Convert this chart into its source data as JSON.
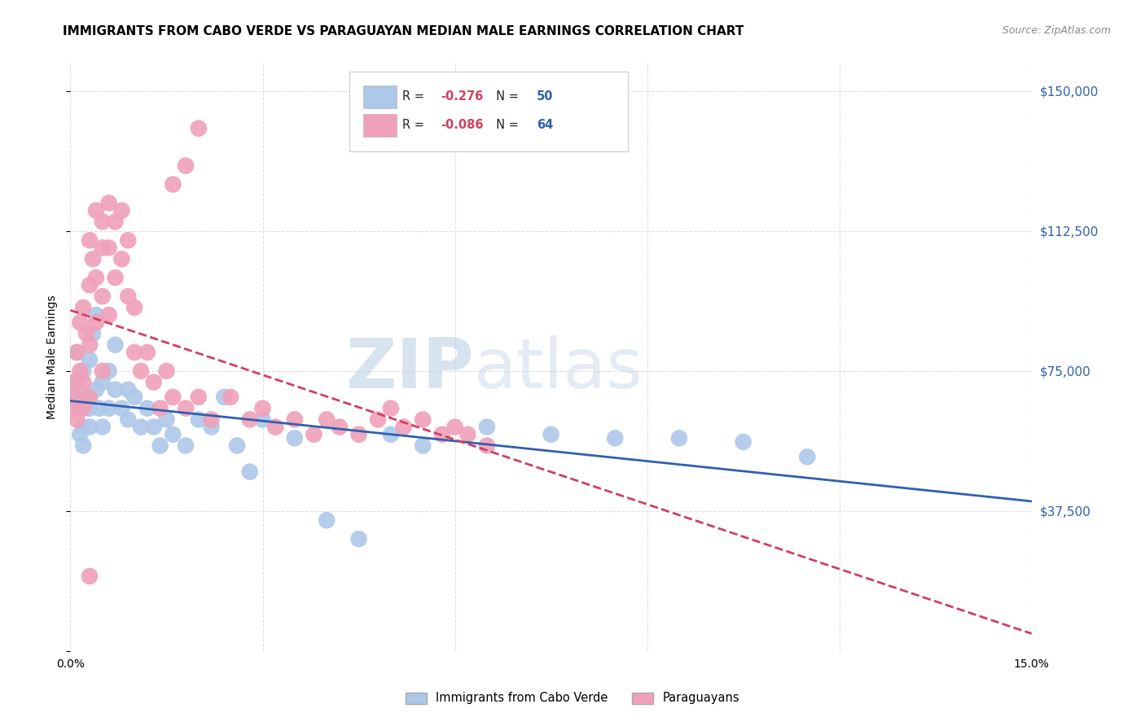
{
  "title": "IMMIGRANTS FROM CABO VERDE VS PARAGUAYAN MEDIAN MALE EARNINGS CORRELATION CHART",
  "source": "Source: ZipAtlas.com",
  "ylabel": "Median Male Earnings",
  "watermark_zip": "ZIP",
  "watermark_atlas": "atlas",
  "xlim": [
    0.0,
    0.15
  ],
  "ylim": [
    0,
    157500
  ],
  "yticks": [
    0,
    37500,
    75000,
    112500,
    150000
  ],
  "ytick_labels": [
    "",
    "$37,500",
    "$75,000",
    "$112,500",
    "$150,000"
  ],
  "xticks": [
    0.0,
    0.03,
    0.06,
    0.09,
    0.12,
    0.15
  ],
  "xtick_labels": [
    "0.0%",
    "",
    "",
    "",
    "",
    "15.0%"
  ],
  "cabo_verde": {
    "label": "Immigrants from Cabo Verde",
    "R": -0.276,
    "N": 50,
    "color": "#adc8e8",
    "line_color": "#3060b0",
    "line_style": "solid",
    "x": [
      0.0005,
      0.001,
      0.001,
      0.0015,
      0.0015,
      0.002,
      0.002,
      0.002,
      0.0025,
      0.003,
      0.003,
      0.003,
      0.0035,
      0.004,
      0.004,
      0.0045,
      0.005,
      0.005,
      0.006,
      0.006,
      0.007,
      0.007,
      0.008,
      0.009,
      0.009,
      0.01,
      0.011,
      0.012,
      0.013,
      0.014,
      0.015,
      0.016,
      0.018,
      0.02,
      0.022,
      0.024,
      0.026,
      0.028,
      0.03,
      0.035,
      0.04,
      0.045,
      0.05,
      0.055,
      0.065,
      0.075,
      0.085,
      0.095,
      0.105,
      0.115
    ],
    "y": [
      68000,
      72000,
      80000,
      65000,
      58000,
      75000,
      60000,
      55000,
      68000,
      78000,
      65000,
      60000,
      85000,
      90000,
      70000,
      65000,
      72000,
      60000,
      75000,
      65000,
      82000,
      70000,
      65000,
      70000,
      62000,
      68000,
      60000,
      65000,
      60000,
      55000,
      62000,
      58000,
      55000,
      62000,
      60000,
      68000,
      55000,
      48000,
      62000,
      57000,
      35000,
      30000,
      58000,
      55000,
      60000,
      58000,
      57000,
      57000,
      56000,
      52000
    ]
  },
  "paraguayan": {
    "label": "Paraguayans",
    "R": -0.086,
    "N": 64,
    "color": "#f0a0b8",
    "line_color": "#d04060",
    "line_style": "dashed",
    "x": [
      0.0005,
      0.0005,
      0.001,
      0.001,
      0.001,
      0.0015,
      0.0015,
      0.002,
      0.002,
      0.002,
      0.0025,
      0.003,
      0.003,
      0.003,
      0.003,
      0.0035,
      0.004,
      0.004,
      0.004,
      0.005,
      0.005,
      0.005,
      0.005,
      0.006,
      0.006,
      0.006,
      0.007,
      0.007,
      0.008,
      0.008,
      0.009,
      0.009,
      0.01,
      0.01,
      0.011,
      0.012,
      0.013,
      0.014,
      0.015,
      0.016,
      0.018,
      0.02,
      0.022,
      0.025,
      0.028,
      0.03,
      0.032,
      0.035,
      0.038,
      0.04,
      0.042,
      0.045,
      0.048,
      0.05,
      0.052,
      0.055,
      0.058,
      0.06,
      0.062,
      0.065,
      0.02,
      0.018,
      0.016,
      0.003
    ],
    "y": [
      72000,
      65000,
      80000,
      68000,
      62000,
      88000,
      75000,
      92000,
      72000,
      65000,
      85000,
      110000,
      98000,
      82000,
      68000,
      105000,
      118000,
      100000,
      88000,
      115000,
      108000,
      95000,
      75000,
      120000,
      108000,
      90000,
      115000,
      100000,
      118000,
      105000,
      110000,
      95000,
      92000,
      80000,
      75000,
      80000,
      72000,
      65000,
      75000,
      68000,
      65000,
      68000,
      62000,
      68000,
      62000,
      65000,
      60000,
      62000,
      58000,
      62000,
      60000,
      58000,
      62000,
      65000,
      60000,
      62000,
      58000,
      60000,
      58000,
      55000,
      140000,
      130000,
      125000,
      20000
    ]
  },
  "legend_r_color": "#222222",
  "legend_rv_color": "#d04060",
  "legend_n_color": "#3060b0",
  "title_fontsize": 11,
  "axis_label_fontsize": 10,
  "tick_fontsize": 10,
  "right_tick_color": "#3060b0",
  "background_color": "#ffffff",
  "grid_color": "#e0e0e0"
}
